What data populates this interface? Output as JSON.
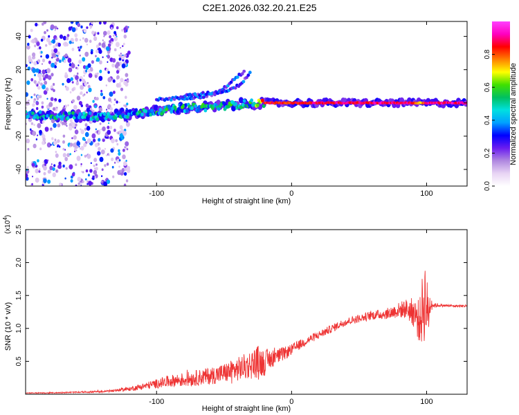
{
  "figure": {
    "title": "C2E1.2026.032.20.21.E25"
  },
  "chart_data": [
    {
      "type": "heatmap",
      "title": "C2E1.2026.032.20.21.E25",
      "xlabel": "Height of straight line (km)",
      "ylabel": "Frequency (Hz)",
      "xlim": [
        -197,
        130
      ],
      "ylim": [
        -50,
        49
      ],
      "xticks": [
        -100,
        0,
        100
      ],
      "yticks": [
        -40,
        -20,
        0,
        20,
        40
      ],
      "grid": false,
      "colorbar": {
        "label": "Normalized spectral amplitude",
        "range": [
          0,
          1
        ],
        "ticks": [
          0.0,
          0.2,
          0.4,
          0.6,
          0.8
        ],
        "tick_labels": [
          "0.0",
          "0.2",
          "0.4",
          "0.6",
          "0.8"
        ],
        "colors": [
          "#ffffff",
          "#e8d4f4",
          "#b088e0",
          "#6a1cf0",
          "#0000ff",
          "#00a0ff",
          "#00e0e0",
          "#00c060",
          "#40e000",
          "#ffff00",
          "#ff8000",
          "#ff0000",
          "#ff00c0",
          "#ff40ff"
        ]
      },
      "main_trace": {
        "x": [
          -197,
          -180,
          -160,
          -140,
          -120,
          -100,
          -80,
          -60,
          -40,
          -25,
          -20,
          0,
          20,
          60,
          90,
          95,
          100,
          130
        ],
        "y": [
          -7,
          -7.5,
          -8,
          -8,
          -6.5,
          -5,
          -3,
          -2.5,
          -1,
          0,
          0,
          0,
          0,
          0,
          0,
          0,
          0,
          0
        ],
        "amplitude": [
          0.45,
          0.5,
          0.5,
          0.48,
          0.5,
          0.52,
          0.55,
          0.55,
          0.55,
          0.6,
          0.85,
          0.85,
          0.88,
          0.9,
          0.9,
          0.7,
          0.9,
          0.92
        ]
      },
      "secondary_traces": [
        {
          "x": [
            -100,
            -80,
            -65,
            -55,
            -50,
            -45,
            -40,
            -35
          ],
          "y": [
            2,
            3,
            4,
            6,
            9,
            12,
            16,
            19
          ]
        },
        {
          "x": [
            -80,
            -60,
            -50,
            -40,
            -35,
            -30
          ],
          "y": [
            4,
            6,
            7,
            10,
            14,
            19
          ]
        }
      ],
      "noise_band_x": [
        -197,
        -120
      ]
    },
    {
      "type": "line",
      "exponent_label": "(x10",
      "exponent_sup": "4",
      "exponent_close": ")",
      "xlabel": "Height of straight line (km)",
      "ylabel": "SNR (10 * v/v)",
      "xlim": [
        -197,
        130
      ],
      "ylim": [
        0,
        2.5
      ],
      "xticks": [
        -100,
        0,
        100
      ],
      "yticks": [
        0.5,
        1.0,
        1.5,
        2.0,
        2.5
      ],
      "ytick_labels": [
        "0.5",
        "1.0",
        "1.5",
        "2.0",
        "2.5"
      ],
      "grid": false,
      "series": [
        {
          "name": "SNR",
          "color": "#ee3333",
          "x": [
            -197,
            -180,
            -160,
            -140,
            -130,
            -120,
            -110,
            -100,
            -90,
            -80,
            -70,
            -60,
            -50,
            -40,
            -30,
            -25,
            -20,
            -15,
            -10,
            -5,
            0,
            10,
            20,
            30,
            40,
            50,
            60,
            70,
            80,
            85,
            90,
            95,
            97,
            99,
            101,
            103,
            105,
            110,
            120,
            130
          ],
          "y": [
            0.02,
            0.02,
            0.03,
            0.04,
            0.06,
            0.08,
            0.12,
            0.16,
            0.2,
            0.22,
            0.25,
            0.28,
            0.32,
            0.38,
            0.45,
            0.5,
            0.48,
            0.55,
            0.58,
            0.62,
            0.68,
            0.8,
            0.9,
            1.0,
            1.1,
            1.15,
            1.2,
            1.22,
            1.28,
            1.3,
            1.25,
            1.1,
            1.3,
            1.45,
            1.2,
            1.4,
            1.35,
            1.35,
            1.34,
            1.34
          ],
          "noise_amplitude": [
            0.005,
            0.008,
            0.01,
            0.015,
            0.02,
            0.03,
            0.05,
            0.07,
            0.09,
            0.11,
            0.12,
            0.13,
            0.15,
            0.18,
            0.22,
            0.25,
            0.2,
            0.15,
            0.12,
            0.1,
            0.08,
            0.07,
            0.06,
            0.06,
            0.06,
            0.06,
            0.07,
            0.08,
            0.12,
            0.15,
            0.22,
            0.35,
            0.55,
            0.65,
            0.4,
            0.15,
            0.04,
            0.02,
            0.02,
            0.02
          ]
        }
      ]
    }
  ]
}
